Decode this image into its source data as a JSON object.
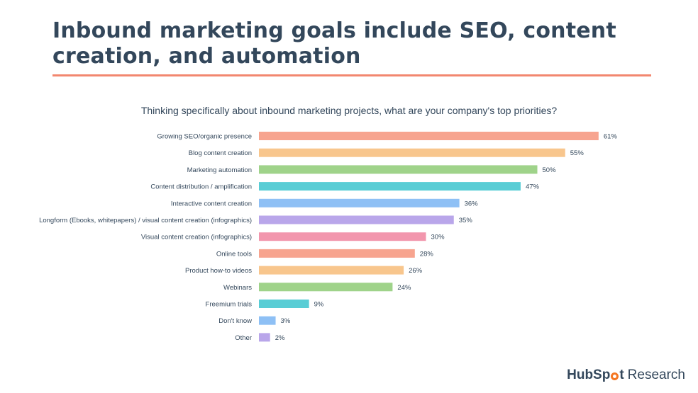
{
  "title": "Inbound marketing goals include SEO, content creation, and automation",
  "question": "Thinking specifically about inbound marketing projects, what are your company's top priorities?",
  "brand": {
    "hub": "HubSp",
    "t": "t",
    "research": "Research"
  },
  "colors": {
    "rule": "#f2876f",
    "palette": [
      "#f7a48f",
      "#f8c68d",
      "#9fd38a",
      "#59cdd5",
      "#8ec0f5",
      "#b9a6ea",
      "#f296ad"
    ]
  },
  "chart_data": {
    "type": "bar",
    "orientation": "horizontal",
    "title": "Thinking specifically about inbound marketing projects, what are your company's top priorities?",
    "categories": [
      "Growing SEO/organic presence",
      "Blog content creation",
      "Marketing automation",
      "Content distribution / amplification",
      "Interactive content creation",
      "Longform (Ebooks, whitepapers) / visual content creation (infographics)",
      "Visual content creation (infographics)",
      "Online tools",
      "Product how-to videos",
      "Webinars",
      "Freemium trials",
      "Don't know",
      "Other"
    ],
    "values": [
      61,
      55,
      50,
      47,
      36,
      35,
      30,
      28,
      26,
      24,
      9,
      3,
      2
    ],
    "value_labels": [
      "61%",
      "55%",
      "50%",
      "47%",
      "36%",
      "35%",
      "30%",
      "28%",
      "26%",
      "24%",
      "9%",
      "3%",
      "2%"
    ],
    "unit": "%",
    "grid": false,
    "legend": "none"
  }
}
